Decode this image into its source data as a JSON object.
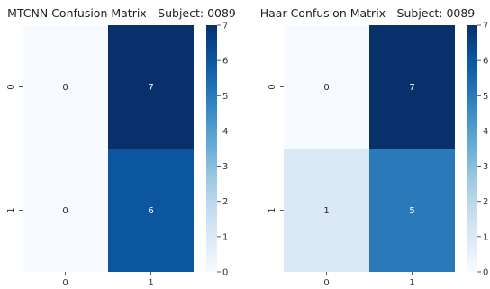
{
  "chart_data": [
    {
      "type": "heatmap",
      "title": "MTCNN Confusion Matrix - Subject: 0089",
      "xlabel": "",
      "ylabel": "",
      "x_categories": [
        "0",
        "1"
      ],
      "y_categories": [
        "0",
        "1"
      ],
      "values": [
        [
          0,
          7
        ],
        [
          0,
          6
        ]
      ],
      "colormap": "Blues",
      "colorbar": {
        "min": 0,
        "max": 7,
        "ticks": [
          "0",
          "1",
          "2",
          "3",
          "4",
          "5",
          "6",
          "7"
        ]
      }
    },
    {
      "type": "heatmap",
      "title": "Haar Confusion Matrix - Subject: 0089",
      "xlabel": "",
      "ylabel": "",
      "x_categories": [
        "0",
        "1"
      ],
      "y_categories": [
        "0",
        "1"
      ],
      "values": [
        [
          0,
          7
        ],
        [
          1,
          5
        ]
      ],
      "colormap": "Blues",
      "colorbar": {
        "min": 0,
        "max": 7,
        "ticks": [
          "0",
          "1",
          "2",
          "3",
          "4",
          "5",
          "6",
          "7"
        ]
      }
    }
  ]
}
